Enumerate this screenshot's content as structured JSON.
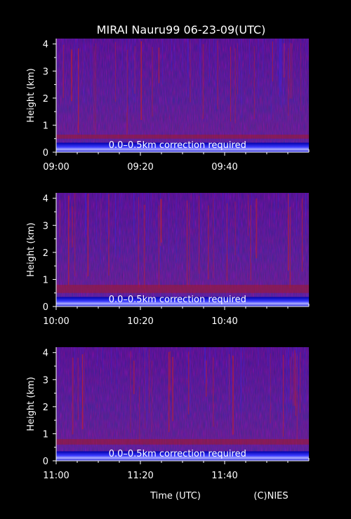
{
  "title": "MIRAI Nauru99 06-23-09(UTC)",
  "xlabel": "Time (UTC)",
  "credit": "(C)NIES",
  "colors": {
    "background": "#000000",
    "text": "#ffffff",
    "low": "#1a1a9a",
    "high": "#c81818",
    "surface": "#2020ff"
  },
  "chart_data": [
    {
      "type": "heatmap",
      "ylabel": "Height (km)",
      "yticks": [
        "0",
        "1",
        "2",
        "3",
        "4"
      ],
      "ylim": [
        0,
        4.2
      ],
      "xticks": [
        "09:00",
        "09:20",
        "09:40"
      ],
      "xlim_minutes": [
        0,
        60
      ],
      "annotation": "0.0–0.5km correction required",
      "cloud_layer_km": [
        0.5,
        0.65
      ]
    },
    {
      "type": "heatmap",
      "ylabel": "Height (km)",
      "yticks": [
        "0",
        "1",
        "2",
        "3",
        "4"
      ],
      "ylim": [
        0,
        4.2
      ],
      "xticks": [
        "10:00",
        "10:20",
        "10:40"
      ],
      "xlim_minutes": [
        0,
        60
      ],
      "annotation": "0.0–0.5km correction required",
      "cloud_layer_km": [
        0.5,
        0.8
      ]
    },
    {
      "type": "heatmap",
      "ylabel": "Height (km)",
      "yticks": [
        "0",
        "1",
        "2",
        "3",
        "4"
      ],
      "ylim": [
        0,
        4.2
      ],
      "xticks": [
        "11:00",
        "11:20",
        "11:40"
      ],
      "xlim_minutes": [
        0,
        60
      ],
      "annotation": "0.0–0.5km correction required",
      "cloud_layer_km": [
        0.6,
        0.8
      ]
    }
  ]
}
